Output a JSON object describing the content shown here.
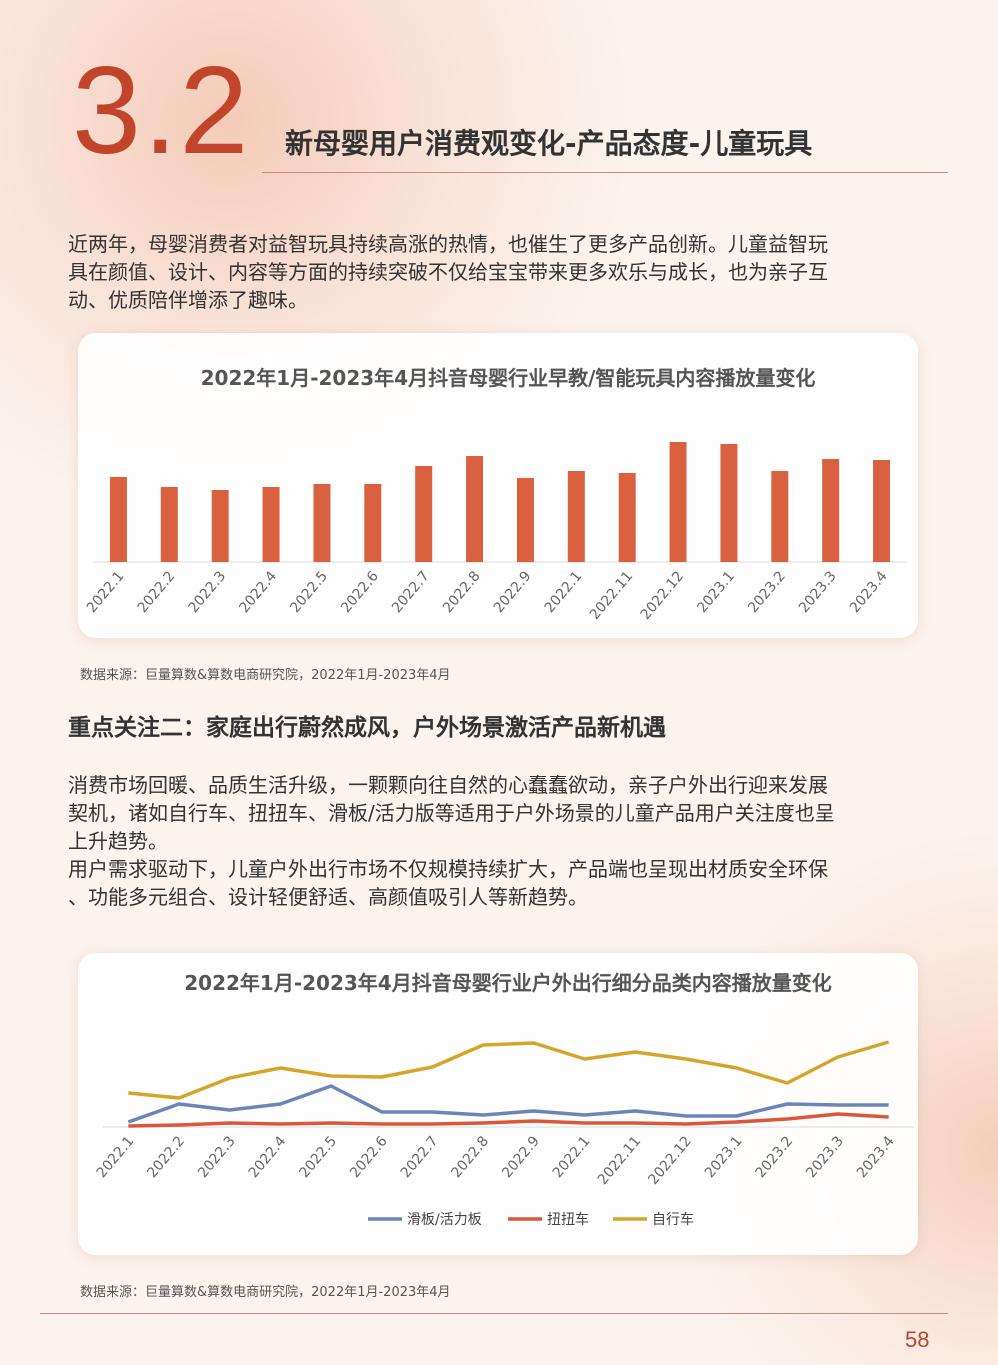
{
  "header": {
    "number": "3.2",
    "title": "新母婴用户消费观变化-产品态度-儿童玩具"
  },
  "intro": {
    "lines": [
      "近两年，母婴消费者对益智玩具持续高涨的热情，也催生了更多产品创新。儿童益智玩",
      "具在颜值、设计、内容等方面的持续突破不仅给宝宝带来更多欢乐与成长，也为亲子互",
      "动、优质陪伴增添了趣味。"
    ]
  },
  "section2": {
    "heading": "重点关注二：家庭出行蔚然成风，户外场景激活产品新机遇",
    "lines": [
      "消费市场回暖、品质生活升级，一颗颗向往自然的心蠢蠢欲动，亲子户外出行迎来发展",
      "契机，诸如自行车、扭扭车、滑板/活力版等适用于户外场景的儿童产品用户关注度也呈",
      "上升趋势。",
      "用户需求驱动下，儿童户外出行市场不仅规模持续扩大，产品端也呈现出材质安全环保",
      "、功能多元组合、设计轻便舒适、高颜值吸引人等新趋势。"
    ]
  },
  "chart_data": [
    {
      "type": "bar",
      "title": "2022年1月-2023年4月抖音母婴行业早教/智能玩具内容播放量变化",
      "categories": [
        "2022.1",
        "2022.2",
        "2022.3",
        "2022.4",
        "2022.5",
        "2022.6",
        "2022.7",
        "2022.8",
        "2022.9",
        "2022.1",
        "2022.11",
        "2022.12",
        "2023.1",
        "2023.2",
        "2023.3",
        "2023.4"
      ],
      "values": [
        85,
        75,
        72,
        75,
        78,
        78,
        96,
        106,
        84,
        91,
        89,
        120,
        118,
        91,
        103,
        102
      ],
      "color": "#d9613f",
      "ylim": [
        0,
        140
      ],
      "source": "数据来源：巨量算数&算数电商研究院，2022年1月-2023年4月"
    },
    {
      "type": "line",
      "title": "2022年1月-2023年4月抖音母婴行业户外出行细分品类内容播放量变化",
      "categories": [
        "2022.1",
        "2022.2",
        "2022.3",
        "2022.4",
        "2022.5",
        "2022.6",
        "2022.7",
        "2022.8",
        "2022.9",
        "2022.1",
        "2022.11",
        "2022.12",
        "2023.1",
        "2023.2",
        "2023.3",
        "2023.4"
      ],
      "series": [
        {
          "name": "滑板/活力板",
          "color": "#6b85b8",
          "values": [
            5,
            23,
            17,
            23,
            41,
            15,
            15,
            12,
            16,
            12,
            16,
            11,
            11,
            23,
            22,
            22
          ]
        },
        {
          "name": "扭扭车",
          "color": "#d9573a",
          "values": [
            1,
            2,
            4,
            3,
            4,
            3,
            3,
            4,
            6,
            4,
            4,
            3,
            5,
            8,
            13,
            10
          ]
        },
        {
          "name": "自行车",
          "color": "#d4a52a",
          "values": [
            34,
            29,
            49,
            59,
            51,
            50,
            60,
            82,
            84,
            68,
            75,
            68,
            59,
            44,
            70,
            85
          ]
        }
      ],
      "ylim": [
        0,
        110
      ],
      "legend": "bottom",
      "source": "数据来源：巨量算数&算数电商研究院，2022年1月-2023年4月"
    }
  ],
  "footer": {
    "page": 58
  }
}
